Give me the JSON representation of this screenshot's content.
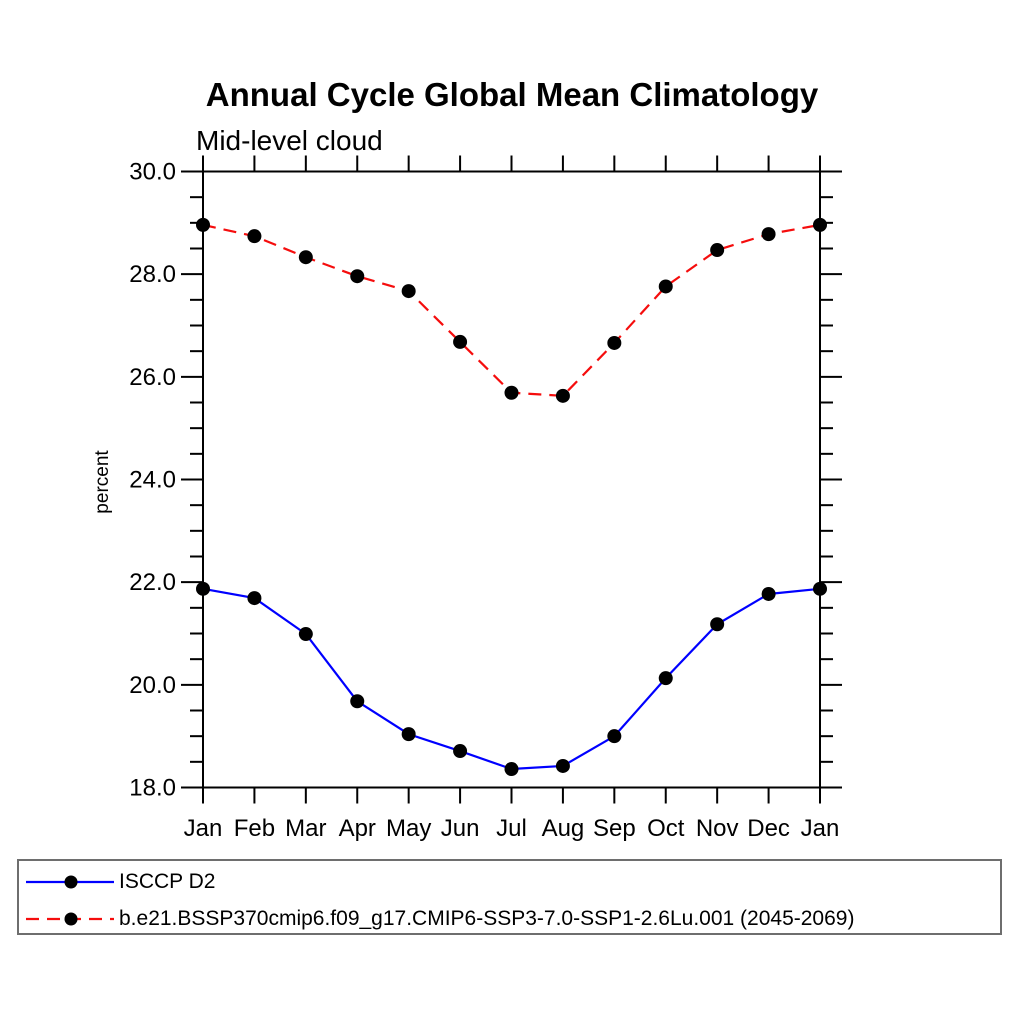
{
  "chart_data": {
    "type": "line",
    "title": "Annual Cycle Global Mean Climatology",
    "subtitle": "Mid-level cloud",
    "ylabel": "percent",
    "xlabel": "",
    "categories": [
      "Jan",
      "Feb",
      "Mar",
      "Apr",
      "May",
      "Jun",
      "Jul",
      "Aug",
      "Sep",
      "Oct",
      "Nov",
      "Dec",
      "Jan"
    ],
    "ylim": [
      18.0,
      30.0
    ],
    "yticks_major": [
      18.0,
      20.0,
      22.0,
      24.0,
      26.0,
      28.0,
      30.0
    ],
    "ytick_labels": [
      "18.0",
      "20.0",
      "22.0",
      "24.0",
      "26.0",
      "28.0",
      "30.0"
    ],
    "ytick_minor_step": 0.5,
    "grid": false,
    "legend_position": "bottom",
    "frame_color": "#000000",
    "series": [
      {
        "name": "ISCCP D2",
        "color": "#0000ff",
        "line_style": "solid",
        "marker": "circle",
        "marker_color": "#000000",
        "values": [
          21.87,
          21.69,
          20.99,
          19.68,
          19.04,
          18.71,
          18.36,
          18.42,
          19.0,
          20.13,
          21.18,
          21.77,
          21.87
        ]
      },
      {
        "name": "b.e21.BSSP370cmip6.f09_g17.CMIP6-SSP3-7.0-SSP1-2.6Lu.001 (2045-2069)",
        "color": "#f50d0d",
        "line_style": "dashed",
        "marker": "circle",
        "marker_color": "#000000",
        "values": [
          28.96,
          28.74,
          28.33,
          27.96,
          27.67,
          26.68,
          25.69,
          25.63,
          26.66,
          27.76,
          28.47,
          28.78,
          28.96
        ]
      }
    ]
  }
}
